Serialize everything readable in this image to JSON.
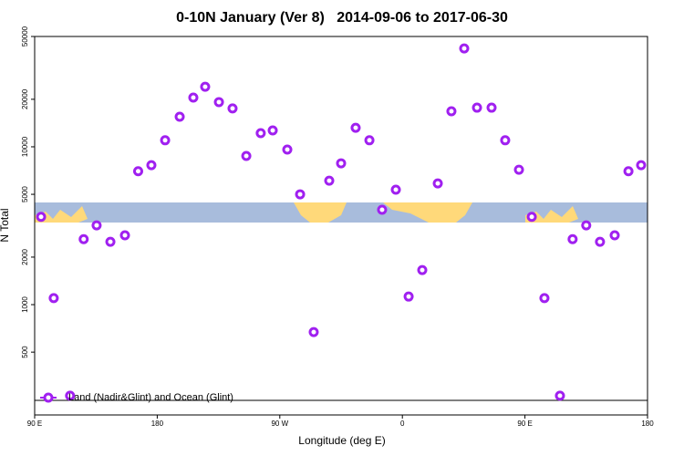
{
  "chart_data": {
    "type": "scatter",
    "title": "0-10N January (Ver 8)   2014-09-06 to 2017-06-30",
    "x_label": "Longitude (deg E)",
    "y_label": "N Total",
    "log_y": true,
    "legend": "bottom-left",
    "xlim": [
      90,
      540
    ],
    "xticks": [
      {
        "value": 90,
        "label": "90 E"
      },
      180,
      {
        "value": 270,
        "label": "90 W"
      },
      {
        "value": 360,
        "label": "0"
      },
      {
        "value": 450,
        "label": "90 E"
      },
      {
        "value": 540,
        "label": "180"
      }
    ],
    "ylim": [
      200,
      50000
    ],
    "yticks": [
      500,
      1000,
      2000,
      5000,
      10000,
      20000,
      50000
    ],
    "series": [
      {
        "name": "Land (Nadir&Glint) and Ocean (Glint)",
        "color": "#a020f0",
        "x": [
          94.7,
          104,
          116,
          126,
          135.5,
          145.6,
          156.3,
          166,
          175.7,
          185.8,
          196.5,
          206.5,
          215.2,
          225.3,
          235.3,
          245.4,
          256,
          264.8,
          275.5,
          284.9,
          294.9,
          306.3,
          315,
          325.7,
          335.8,
          345.1,
          355.2,
          364.6,
          374.6,
          386,
          396,
          405.4,
          414.8,
          425.5,
          435.5,
          445.6,
          455,
          464.3,
          475.7,
          485,
          495,
          505.1,
          515.9,
          526,
          535.3
        ],
        "values": [
          3600,
          1100,
          265,
          2600,
          3180,
          2500,
          2750,
          7000,
          7650,
          11000,
          15500,
          20500,
          24000,
          19200,
          17500,
          8750,
          12200,
          12700,
          9600,
          5000,
          670,
          6100,
          7860,
          13200,
          11000,
          3990,
          5350,
          1125,
          1655,
          5860,
          16800,
          42000,
          17700,
          17700,
          11000,
          7160,
          3600,
          1100,
          265,
          2600,
          3180,
          2500,
          2750,
          7000,
          7650
        ]
      }
    ]
  }
}
